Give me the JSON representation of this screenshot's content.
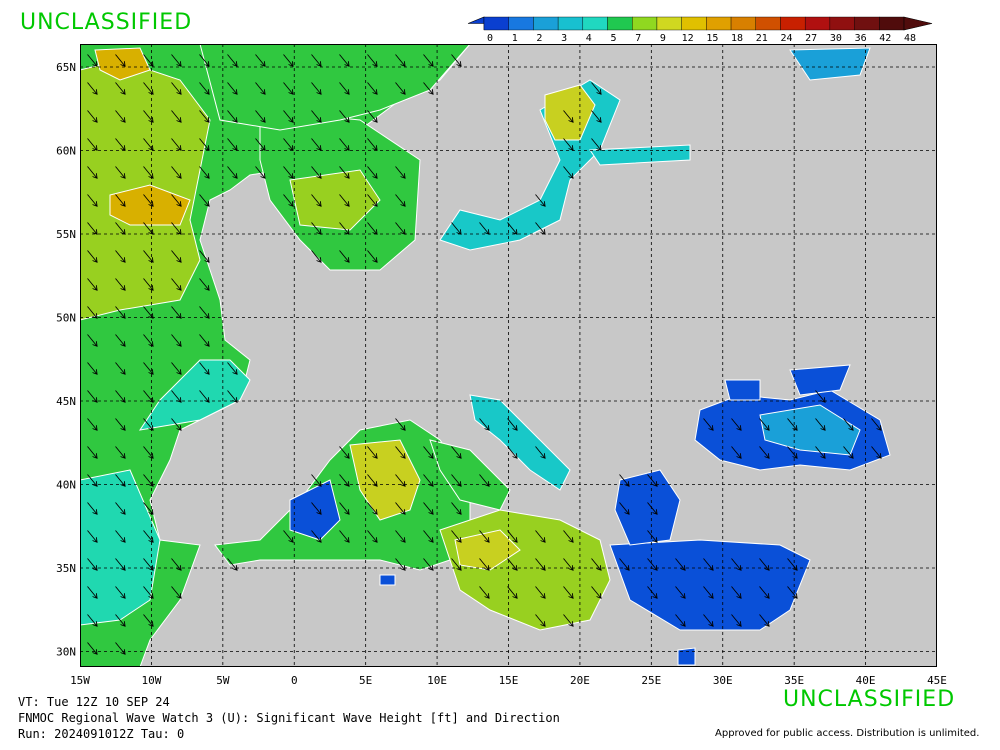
{
  "banners": {
    "top": "UNCLASSIFIED",
    "bottom": "UNCLASSIFIED"
  },
  "legend": {
    "labels": [
      "0",
      "1",
      "2",
      "3",
      "4",
      "5",
      "7",
      "9",
      "12",
      "15",
      "18",
      "21",
      "24",
      "27",
      "30",
      "36",
      "42",
      "48"
    ],
    "colors": [
      "#0a3fd0",
      "#1878e0",
      "#1aa0d8",
      "#18c0d0",
      "#20d8c0",
      "#20c850",
      "#90d820",
      "#d0d820",
      "#e0c000",
      "#e0a000",
      "#d88000",
      "#d05000",
      "#c82000",
      "#b01010",
      "#901010",
      "#701010",
      "#500c0c"
    ],
    "units": "ft"
  },
  "map": {
    "lon_labels": [
      "15W",
      "10W",
      "5W",
      "0",
      "5E",
      "10E",
      "15E",
      "20E",
      "25E",
      "30E",
      "35E",
      "40E",
      "45E"
    ],
    "lat_labels": [
      "65N",
      "60N",
      "55N",
      "50N",
      "45N",
      "40N",
      "35N",
      "30N"
    ],
    "land_color": "#c8c8c8",
    "grid": true,
    "wave_colors": {
      "very_low": "#0a50d8",
      "low": "#1aa0d8",
      "mid_low": "#18c8c8",
      "mid": "#20d8b0",
      "moderate": "#30c840",
      "high": "#98d020",
      "higher": "#c8d020",
      "highest": "#d8b000"
    }
  },
  "footer": {
    "vt": "VT: Tue 12Z 10 SEP 24",
    "product": "FNMOC Regional Wave Watch 3 (U): Significant Wave Height [ft] and Direction",
    "run": "Run: 2024091012Z Tau: 0",
    "approved": "Approved for public access. Distribution is unlimited."
  }
}
